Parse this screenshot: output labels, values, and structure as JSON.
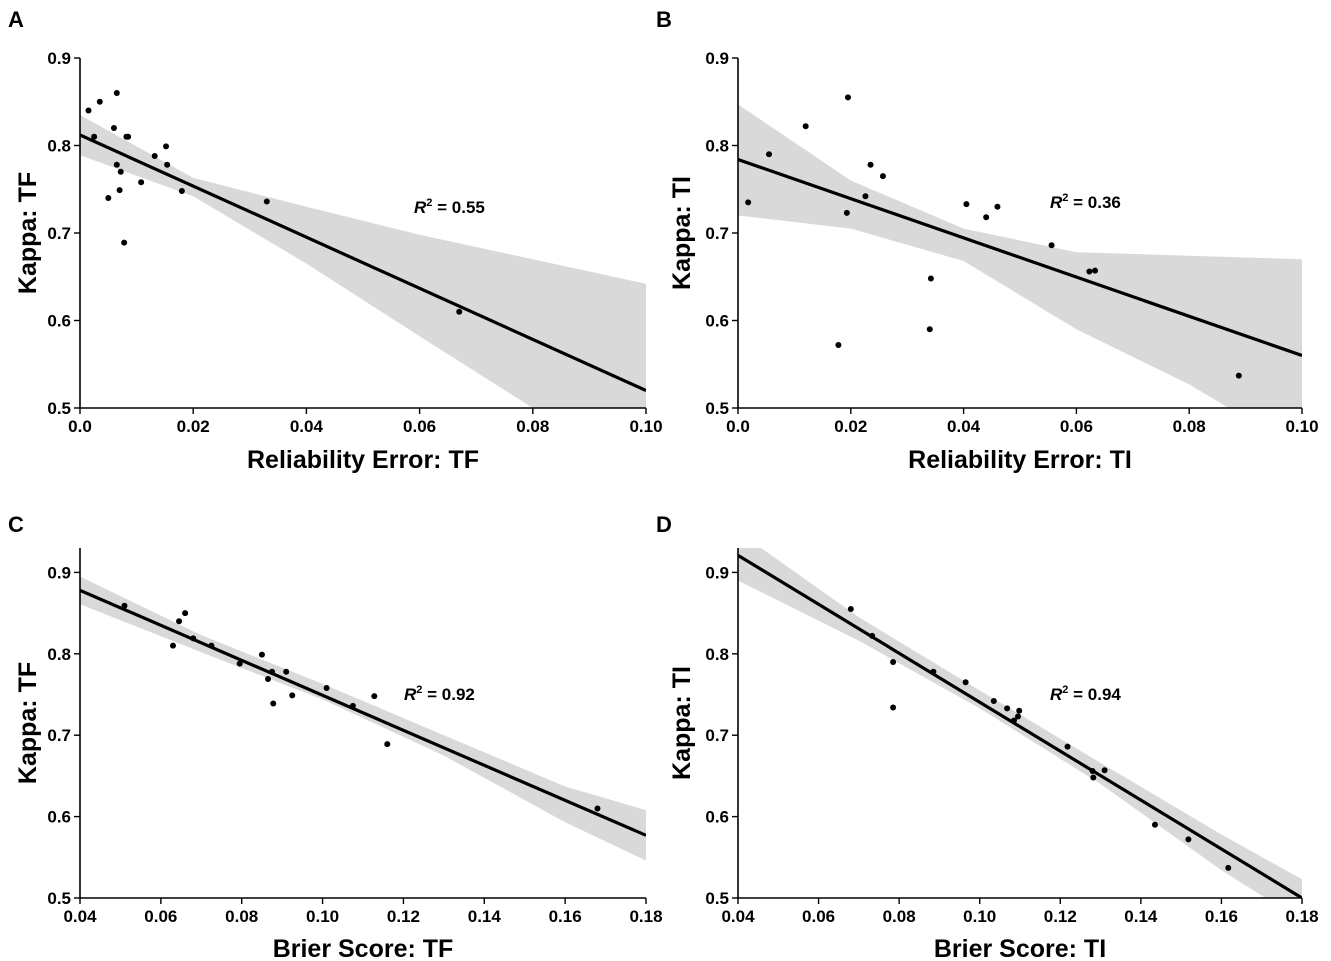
{
  "chart_data": [
    {
      "panel": "A",
      "type": "scatter",
      "xlabel": "Reliability Error: TF",
      "ylabel": "Kappa: TF",
      "xlim": [
        0,
        0.1
      ],
      "ylim": [
        0.5,
        0.9
      ],
      "xticks": [
        "0.0",
        "0.02",
        "0.04",
        "0.06",
        "0.08",
        "0.10"
      ],
      "yticks": [
        "0.5",
        "0.6",
        "0.7",
        "0.8",
        "0.9"
      ],
      "r2_label": "R² = 0.55",
      "fit": {
        "x": [
          0,
          0.1
        ],
        "y": [
          0.812,
          0.52
        ]
      },
      "band": {
        "x": [
          0,
          0.02,
          0.04,
          0.06,
          0.08,
          0.1
        ],
        "upper": [
          0.835,
          0.763,
          0.73,
          0.698,
          0.67,
          0.642
        ],
        "lower": [
          0.789,
          0.742,
          0.665,
          0.582,
          0.5,
          0.4
        ]
      },
      "points": {
        "x": [
          0.0015,
          0.0025,
          0.0035,
          0.005,
          0.006,
          0.0065,
          0.0065,
          0.007,
          0.0072,
          0.0078,
          0.0082,
          0.0085,
          0.0108,
          0.0132,
          0.0152,
          0.0154,
          0.018,
          0.033,
          0.067
        ],
        "y": [
          0.84,
          0.81,
          0.85,
          0.74,
          0.82,
          0.86,
          0.778,
          0.749,
          0.77,
          0.689,
          0.81,
          0.81,
          0.758,
          0.788,
          0.799,
          0.778,
          0.748,
          0.736,
          0.61
        ]
      }
    },
    {
      "panel": "B",
      "type": "scatter",
      "xlabel": "Reliability Error: TI",
      "ylabel": "Kappa: TI",
      "xlim": [
        0,
        0.1
      ],
      "ylim": [
        0.5,
        0.9
      ],
      "xticks": [
        "0.0",
        "0.02",
        "0.04",
        "0.06",
        "0.08",
        "0.10"
      ],
      "yticks": [
        "0.5",
        "0.6",
        "0.7",
        "0.8",
        "0.9"
      ],
      "r2_label": "R² = 0.36",
      "fit": {
        "x": [
          0,
          0.1
        ],
        "y": [
          0.784,
          0.56
        ]
      },
      "band": {
        "x": [
          0,
          0.02,
          0.04,
          0.06,
          0.08,
          0.1
        ],
        "upper": [
          0.847,
          0.76,
          0.705,
          0.678,
          0.674,
          0.67
        ],
        "lower": [
          0.72,
          0.705,
          0.668,
          0.59,
          0.527,
          0.45
        ]
      },
      "points": {
        "x": [
          0.0018,
          0.0055,
          0.012,
          0.0178,
          0.0193,
          0.0195,
          0.0226,
          0.0235,
          0.0257,
          0.034,
          0.0342,
          0.0405,
          0.044,
          0.046,
          0.0556,
          0.0623,
          0.0633,
          0.0888
        ],
        "y": [
          0.735,
          0.79,
          0.822,
          0.572,
          0.723,
          0.855,
          0.742,
          0.778,
          0.765,
          0.59,
          0.648,
          0.733,
          0.718,
          0.73,
          0.686,
          0.656,
          0.657,
          0.537
        ]
      }
    },
    {
      "panel": "C",
      "type": "scatter",
      "xlabel": "Brier Score: TF",
      "ylabel": "Kappa: TF",
      "xlim": [
        0.04,
        0.18
      ],
      "ylim": [
        0.5,
        0.93
      ],
      "xticks": [
        "0.04",
        "0.06",
        "0.08",
        "0.10",
        "0.12",
        "0.14",
        "0.16",
        "0.18"
      ],
      "yticks": [
        "0.5",
        "0.6",
        "0.7",
        "0.8",
        "0.9"
      ],
      "r2_label": "R² = 0.92",
      "fit": {
        "x": [
          0.04,
          0.18
        ],
        "y": [
          0.878,
          0.577
        ]
      },
      "band": {
        "x": [
          0.04,
          0.07,
          0.1,
          0.13,
          0.16,
          0.18
        ],
        "upper": [
          0.895,
          0.823,
          0.763,
          0.7,
          0.637,
          0.608
        ],
        "lower": [
          0.861,
          0.802,
          0.744,
          0.675,
          0.593,
          0.546
        ]
      },
      "points": {
        "x": [
          0.051,
          0.063,
          0.0645,
          0.066,
          0.068,
          0.0725,
          0.0795,
          0.085,
          0.0865,
          0.0875,
          0.0878,
          0.091,
          0.0925,
          0.101,
          0.1075,
          0.1128,
          0.116,
          0.168
        ],
        "y": [
          0.859,
          0.81,
          0.84,
          0.85,
          0.819,
          0.81,
          0.788,
          0.799,
          0.769,
          0.778,
          0.739,
          0.778,
          0.749,
          0.758,
          0.736,
          0.748,
          0.689,
          0.61
        ]
      }
    },
    {
      "panel": "D",
      "type": "scatter",
      "xlabel": "Brier Score: TI",
      "ylabel": "Kappa: TI",
      "xlim": [
        0.04,
        0.18
      ],
      "ylim": [
        0.5,
        0.93
      ],
      "xticks": [
        "0.04",
        "0.06",
        "0.08",
        "0.10",
        "0.12",
        "0.14",
        "0.16",
        "0.18"
      ],
      "yticks": [
        "0.5",
        "0.6",
        "0.7",
        "0.8",
        "0.9"
      ],
      "r2_label": "R² = 0.94",
      "fit": {
        "x": [
          0.04,
          0.18
        ],
        "y": [
          0.921,
          0.5
        ]
      },
      "band": {
        "x": [
          0.04,
          0.07,
          0.1,
          0.13,
          0.16,
          0.18
        ],
        "upper": [
          0.95,
          0.845,
          0.755,
          0.666,
          0.578,
          0.523
        ],
        "lower": [
          0.89,
          0.816,
          0.733,
          0.64,
          0.534,
          0.472
        ]
      },
      "points": {
        "x": [
          0.068,
          0.0733,
          0.0785,
          0.0785,
          0.0885,
          0.0965,
          0.1035,
          0.1068,
          0.1085,
          0.1095,
          0.1098,
          0.1218,
          0.128,
          0.1282,
          0.131,
          0.1435,
          0.1518,
          0.1617
        ],
        "y": [
          0.855,
          0.822,
          0.79,
          0.734,
          0.778,
          0.765,
          0.742,
          0.733,
          0.718,
          0.723,
          0.73,
          0.686,
          0.656,
          0.648,
          0.657,
          0.59,
          0.572,
          0.537
        ]
      }
    }
  ]
}
